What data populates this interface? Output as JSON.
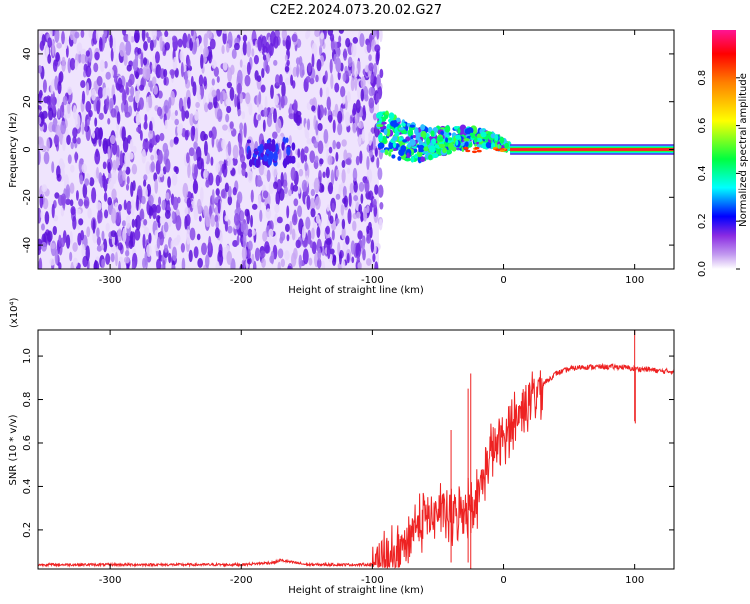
{
  "title": "C2E2.2024.073.20.02.G27",
  "chart_data": [
    {
      "type": "heatmap",
      "xlabel": "Height of straight line (km)",
      "ylabel": "Frequency (Hz)",
      "xlim": [
        -355,
        130
      ],
      "ylim": [
        -50,
        50
      ],
      "x_ticks": [
        -300,
        -200,
        -100,
        0,
        100
      ],
      "y_ticks": [
        -40,
        -20,
        0,
        20,
        40
      ],
      "x_tick_labels": [
        "-300",
        "-200",
        "-100",
        "0",
        "100"
      ],
      "y_tick_labels": [
        "-40",
        "-20",
        "0",
        "20",
        "40"
      ],
      "colorbar": {
        "label": "Normalized spectral amplitude",
        "range": [
          0,
          1
        ],
        "ticks": [
          0.0,
          0.2,
          0.4,
          0.6,
          0.8
        ],
        "tick_labels": [
          "0.0",
          "0.2",
          "0.4",
          "0.6",
          "0.8"
        ],
        "colors": [
          "#ffffff",
          "#8a2be2",
          "#0000ff",
          "#00ffff",
          "#00ff00",
          "#ffff00",
          "#ff8000",
          "#ff0000",
          "#ff1493"
        ]
      },
      "regions": [
        {
          "x_range": [
            -355,
            -95
          ],
          "freq_range": [
            -50,
            50
          ],
          "level": 0.1,
          "description_color": "#7020e0"
        },
        {
          "x_range": [
            -95,
            5
          ],
          "freq_center": [
            8,
            0
          ],
          "level": 0.45
        },
        {
          "x_range": [
            5,
            130
          ],
          "freq_center": 0,
          "level": 0.9
        }
      ]
    },
    {
      "type": "line",
      "xlabel": "Height of straight line (km)",
      "ylabel": "SNR (10 * v/v)",
      "y_multiplier": "(x10⁴)",
      "xlim": [
        -355,
        130
      ],
      "ylim": [
        0.02,
        1.12
      ],
      "x_ticks": [
        -300,
        -200,
        -100,
        0,
        100
      ],
      "y_ticks": [
        0.2,
        0.4,
        0.6,
        0.8,
        1.0
      ],
      "x_tick_labels": [
        "-300",
        "-200",
        "-100",
        "0",
        "100"
      ],
      "y_tick_labels": [
        "0.2",
        "0.4",
        "0.6",
        "0.8",
        "1.0"
      ],
      "series": [
        {
          "color": "#ee2222",
          "x": [
            -355,
            -300,
            -250,
            -200,
            -175,
            -170,
            -150,
            -120,
            -100,
            -90,
            -80,
            -70,
            -60,
            -50,
            -40,
            -30,
            -20,
            -10,
            0,
            10,
            20,
            30,
            40,
            50,
            60,
            70,
            80,
            90,
            100,
            110,
            120,
            130
          ],
          "y": [
            0.04,
            0.04,
            0.04,
            0.04,
            0.05,
            0.06,
            0.04,
            0.04,
            0.04,
            0.05,
            0.08,
            0.2,
            0.25,
            0.28,
            0.25,
            0.3,
            0.35,
            0.55,
            0.62,
            0.72,
            0.8,
            0.87,
            0.92,
            0.94,
            0.95,
            0.95,
            0.95,
            0.95,
            0.94,
            0.94,
            0.93,
            0.93
          ]
        }
      ]
    }
  ]
}
